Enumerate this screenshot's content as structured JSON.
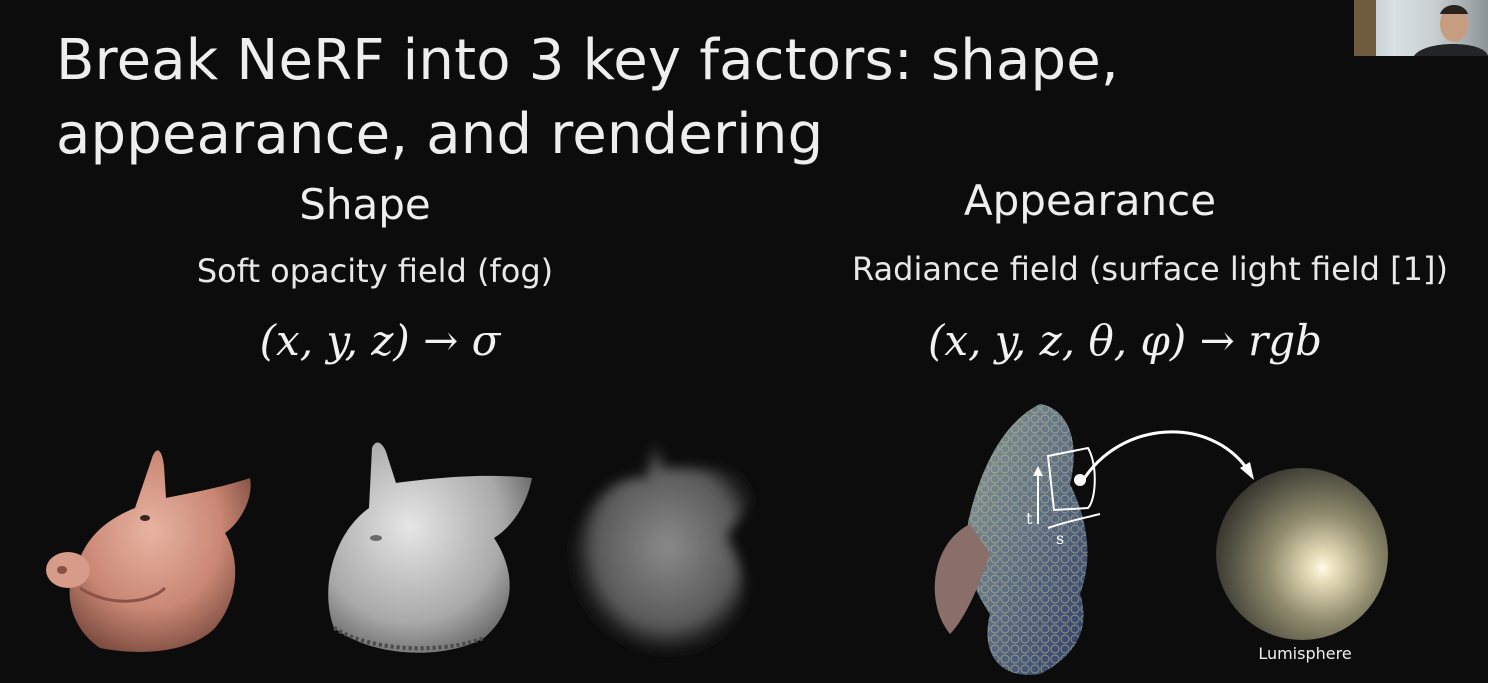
{
  "slide": {
    "title": "Break NeRF into 3 key factors: shape, appearance, and rendering",
    "shape": {
      "heading": "Shape",
      "subtitle": "Soft opacity field (fog)",
      "formula": "(x, y, z) → σ"
    },
    "appearance": {
      "heading": "Appearance",
      "subtitle": "Radiance field (surface light field [1])",
      "formula": "(x, y, z, θ, φ) → rgb",
      "diagram_labels": {
        "t": "t",
        "s": "s",
        "sphere": "Lumisphere"
      }
    }
  },
  "images": {
    "pig_textured": "pig-head-textured",
    "pig_mesh": "pig-head-gray-mesh",
    "pig_fog": "pig-head-soft-fog",
    "fish_statue": "fish-statue-textured",
    "lumisphere": "reflective-sphere"
  },
  "colors": {
    "background": "#0c0c0c",
    "text": "#eeeeee"
  }
}
